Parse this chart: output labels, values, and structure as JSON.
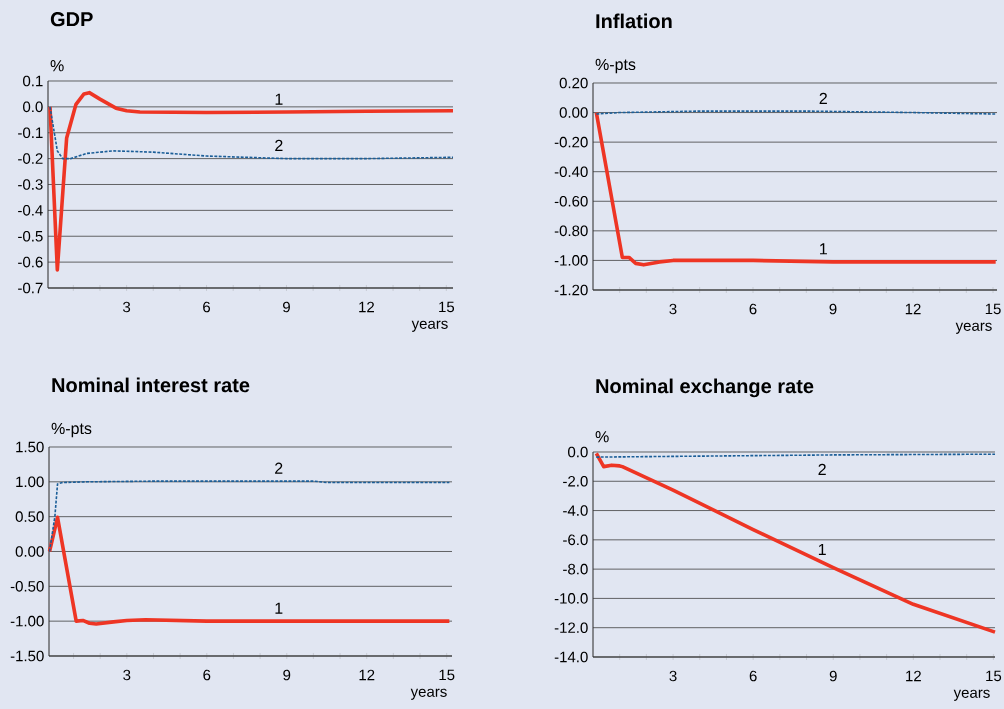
{
  "chart_data": [
    {
      "type": "line",
      "title": "GDP",
      "ylabel": "%",
      "xlabel": "years",
      "grid": "y",
      "xlim": [
        0.05,
        15.25
      ],
      "ylim": [
        -0.7,
        0.1
      ],
      "xticks": [
        {
          "value": 1,
          "label": null
        },
        {
          "value": 2,
          "label": null
        },
        3,
        {
          "value": 4,
          "label": null
        },
        {
          "value": 5,
          "label": null
        },
        6,
        {
          "value": 7,
          "label": null
        },
        {
          "value": 8,
          "label": null
        },
        9,
        {
          "value": 10,
          "label": null
        },
        {
          "value": 11,
          "label": null
        },
        12,
        {
          "value": 13,
          "label": null
        },
        {
          "value": 14,
          "label": null
        },
        15
      ],
      "yticks": [
        {
          "value": -0.7,
          "label": "-0.7"
        },
        {
          "value": -0.6,
          "label": "-0.6"
        },
        {
          "value": -0.5,
          "label": "-0.5"
        },
        {
          "value": -0.4,
          "label": "-0.4"
        },
        {
          "value": -0.3,
          "label": "-0.3"
        },
        {
          "value": -0.2,
          "label": "-0.2"
        },
        {
          "value": -0.1,
          "label": "-0.1"
        },
        {
          "value": 0,
          "label": "0.0"
        },
        {
          "value": 0.1,
          "label": "0.1"
        }
      ],
      "series": [
        {
          "name": "1",
          "color": "#ee3524",
          "line_style": "solid",
          "x": [
            0.125,
            0.4,
            0.75,
            1.1,
            1.4,
            1.6,
            2.0,
            2.6,
            3.0,
            3.5,
            6,
            9,
            12,
            15.25
          ],
          "values": [
            0.0,
            -0.63,
            -0.12,
            0.01,
            0.05,
            0.055,
            0.03,
            -0.005,
            -0.015,
            -0.02,
            -0.022,
            -0.02,
            -0.017,
            -0.015
          ]
        },
        {
          "name": "2",
          "color": "#1b5e98",
          "line_style": "dashed",
          "x": [
            0.125,
            0.4,
            0.6,
            0.9,
            1.5,
            2.5,
            4,
            6,
            9,
            12,
            15.25
          ],
          "values": [
            0.0,
            -0.17,
            -0.2,
            -0.2,
            -0.18,
            -0.17,
            -0.175,
            -0.19,
            -0.2,
            -0.2,
            -0.195
          ]
        }
      ]
    },
    {
      "type": "line",
      "title": "Inflation",
      "ylabel": "%-pts",
      "xlabel": "years",
      "grid": "y",
      "xlim": [
        0,
        15.15
      ],
      "ylim": [
        -1.2,
        0.2
      ],
      "xticks": [
        {
          "value": 1,
          "label": null
        },
        {
          "value": 2,
          "label": null
        },
        3,
        {
          "value": 4,
          "label": null
        },
        {
          "value": 5,
          "label": null
        },
        6,
        {
          "value": 7,
          "label": null
        },
        {
          "value": 8,
          "label": null
        },
        9,
        {
          "value": 10,
          "label": null
        },
        {
          "value": 11,
          "label": null
        },
        12,
        {
          "value": 13,
          "label": null
        },
        {
          "value": 14,
          "label": null
        },
        15
      ],
      "yticks": [
        {
          "value": -1.2,
          "label": "-1.20"
        },
        {
          "value": -1.0,
          "label": "-1.00"
        },
        {
          "value": -0.8,
          "label": "-0.80"
        },
        {
          "value": -0.6,
          "label": "-0.60"
        },
        {
          "value": -0.4,
          "label": "-0.40"
        },
        {
          "value": -0.2,
          "label": "-0.20"
        },
        {
          "value": 0,
          "label": "0.00"
        },
        {
          "value": 0.2,
          "label": "0.20"
        }
      ],
      "series": [
        {
          "name": "1",
          "color": "#ee3524",
          "line_style": "solid",
          "x": [
            0.125,
            1.1,
            1.35,
            1.6,
            1.9,
            2.5,
            3,
            4,
            6,
            9,
            12,
            15.1
          ],
          "values": [
            0.0,
            -0.98,
            -0.98,
            -1.02,
            -1.03,
            -1.01,
            -1.0,
            -1.0,
            -1.0,
            -1.01,
            -1.01,
            -1.01
          ]
        },
        {
          "name": "2",
          "color": "#1b5e98",
          "line_style": "dashed",
          "x": [
            0.125,
            1,
            4,
            8,
            12,
            15.1
          ],
          "values": [
            -0.01,
            0.0,
            0.01,
            0.01,
            0.0,
            -0.01
          ]
        }
      ]
    },
    {
      "type": "line",
      "title": "Nominal interest rate",
      "ylabel": "%-pts",
      "xlabel": "years",
      "grid": "y",
      "xlim": [
        0.08,
        15.2
      ],
      "ylim": [
        -1.5,
        1.5
      ],
      "xticks": [
        {
          "value": 1,
          "label": null
        },
        {
          "value": 2,
          "label": null
        },
        3,
        {
          "value": 4,
          "label": null
        },
        {
          "value": 5,
          "label": null
        },
        6,
        {
          "value": 7,
          "label": null
        },
        {
          "value": 8,
          "label": null
        },
        9,
        {
          "value": 10,
          "label": null
        },
        {
          "value": 11,
          "label": null
        },
        12,
        {
          "value": 13,
          "label": null
        },
        {
          "value": 14,
          "label": null
        },
        15
      ],
      "yticks": [
        {
          "value": -1.5,
          "label": "-1.50"
        },
        {
          "value": -1.0,
          "label": "-1.00"
        },
        {
          "value": -0.5,
          "label": "-0.50"
        },
        {
          "value": 0,
          "label": "0.00"
        },
        {
          "value": 0.5,
          "label": "0.50"
        },
        {
          "value": 1.0,
          "label": "1.00"
        },
        {
          "value": 1.5,
          "label": "1.50"
        }
      ],
      "series": [
        {
          "name": "1",
          "color": "#ee3524",
          "line_style": "solid",
          "x": [
            0.1,
            0.4,
            1.1,
            1.35,
            1.6,
            1.85,
            2.5,
            3,
            3.7,
            6,
            9,
            12,
            15.1
          ],
          "values": [
            0.0,
            0.49,
            -1.0,
            -0.99,
            -1.03,
            -1.04,
            -1.01,
            -0.99,
            -0.98,
            -1.0,
            -1.0,
            -1.0,
            -1.0
          ]
        },
        {
          "name": "2",
          "color": "#1b5e98",
          "line_style": "dashed",
          "x": [
            0.1,
            0.3,
            0.4,
            0.6,
            1.5,
            4,
            7,
            10,
            10.5,
            15.1
          ],
          "values": [
            0.0,
            0.5,
            0.97,
            0.99,
            1.0,
            1.01,
            1.01,
            1.01,
            0.99,
            0.99
          ]
        }
      ]
    },
    {
      "type": "line",
      "title": "Nominal exchange rate",
      "ylabel": "%",
      "xlabel": "years",
      "grid": "y",
      "xlim": [
        0,
        15.06
      ],
      "ylim": [
        -14,
        0
      ],
      "xticks": [
        {
          "value": 1,
          "label": null
        },
        {
          "value": 2,
          "label": null
        },
        3,
        {
          "value": 4,
          "label": null
        },
        {
          "value": 5,
          "label": null
        },
        6,
        {
          "value": 7,
          "label": null
        },
        {
          "value": 8,
          "label": null
        },
        9,
        {
          "value": 10,
          "label": null
        },
        {
          "value": 11,
          "label": null
        },
        12,
        {
          "value": 13,
          "label": null
        },
        {
          "value": 14,
          "label": null
        },
        15
      ],
      "yticks": [
        {
          "value": -14,
          "label": "-14.0"
        },
        {
          "value": -12,
          "label": "-12.0"
        },
        {
          "value": -10,
          "label": "-10.0"
        },
        {
          "value": -8,
          "label": "-8.0"
        },
        {
          "value": -6,
          "label": "-6.0"
        },
        {
          "value": -4,
          "label": "-4.0"
        },
        {
          "value": -2,
          "label": "-2.0"
        },
        {
          "value": 0,
          "label": "0.0"
        }
      ],
      "series": [
        {
          "name": "1",
          "color": "#ee3524",
          "line_style": "solid",
          "x": [
            0.125,
            0.4,
            0.7,
            1.0,
            1.1,
            3,
            6,
            9,
            12,
            15.06
          ],
          "values": [
            -0.1,
            -1.0,
            -0.9,
            -0.95,
            -1.0,
            -2.6,
            -5.3,
            -7.9,
            -10.4,
            -12.3
          ]
        },
        {
          "name": "2",
          "color": "#1b5e98",
          "line_style": "dashed",
          "x": [
            0.125,
            3,
            6,
            9,
            15.06
          ],
          "values": [
            -0.35,
            -0.3,
            -0.25,
            -0.2,
            -0.15
          ]
        }
      ]
    }
  ]
}
